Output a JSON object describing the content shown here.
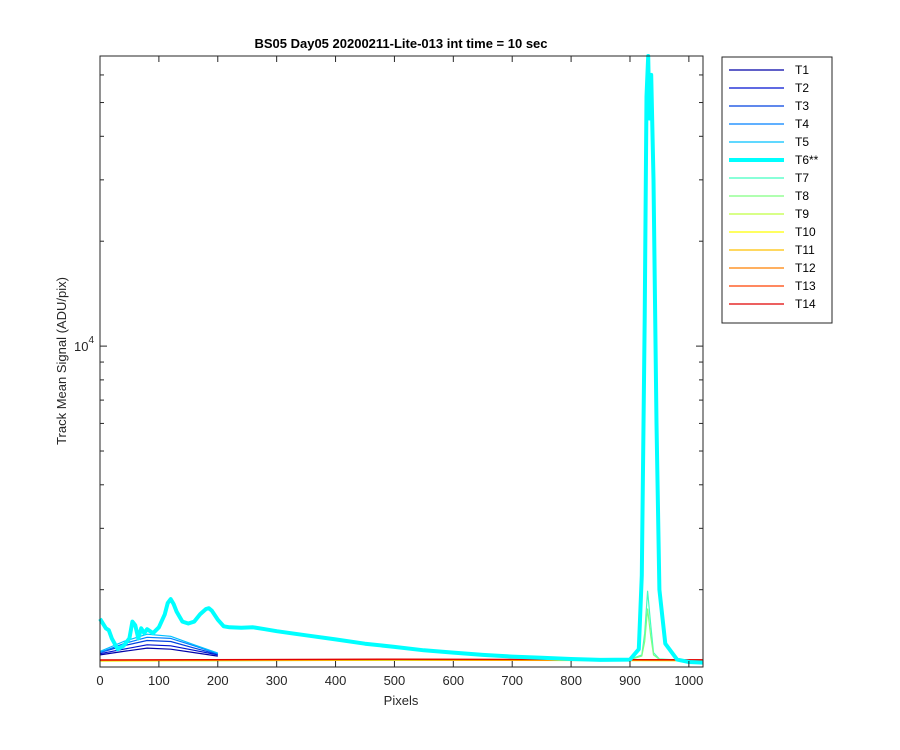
{
  "chart_data": {
    "type": "line",
    "title": "BS05 Day05 20200211-Lite-013 int time = 10 sec",
    "xlabel": "Pixels",
    "ylabel": "Track Mean Signal (ADU/pix)",
    "xlim": [
      0,
      1024
    ],
    "ylim": [
      1200,
      68000
    ],
    "yscale": "log",
    "xticks": [
      0,
      100,
      200,
      300,
      400,
      500,
      600,
      700,
      800,
      900,
      1000
    ],
    "yticks_labeled": [
      {
        "base": "10",
        "exp": "4",
        "value": 10000
      }
    ],
    "yticks_minor": [
      20000,
      30000,
      40000,
      50000,
      60000,
      2000,
      3000,
      4000,
      5000,
      6000,
      7000,
      8000,
      9000
    ],
    "grid": "on",
    "legend_placement": "outside-right",
    "series": [
      {
        "name": "T1",
        "color": "#0000a8",
        "width": 1.2,
        "x": [
          0,
          40,
          80,
          120,
          160,
          200
        ],
        "y": [
          1300,
          1330,
          1360,
          1350,
          1320,
          1290
        ]
      },
      {
        "name": "T2",
        "color": "#0010d0",
        "width": 1.2,
        "x": [
          0,
          40,
          80,
          120,
          160,
          200
        ],
        "y": [
          1310,
          1350,
          1390,
          1380,
          1340,
          1300
        ]
      },
      {
        "name": "T3",
        "color": "#0040e0",
        "width": 1.2,
        "x": [
          0,
          40,
          80,
          120,
          160,
          200
        ],
        "y": [
          1320,
          1380,
          1430,
          1420,
          1360,
          1305
        ]
      },
      {
        "name": "T4",
        "color": "#0080ff",
        "width": 1.2,
        "x": [
          0,
          40,
          80,
          120,
          160,
          200
        ],
        "y": [
          1320,
          1400,
          1460,
          1450,
          1380,
          1310
        ]
      },
      {
        "name": "T5",
        "color": "#00c0ff",
        "width": 1.2,
        "x": [
          0,
          40,
          80,
          120,
          160,
          200
        ],
        "y": [
          1330,
          1420,
          1490,
          1470,
          1390,
          1315
        ]
      },
      {
        "name": "T6**",
        "color": "#00ffff",
        "width": 4,
        "x": [
          0,
          10,
          15,
          20,
          30,
          40,
          50,
          55,
          60,
          65,
          70,
          75,
          80,
          85,
          90,
          100,
          110,
          115,
          120,
          125,
          130,
          140,
          150,
          160,
          170,
          180,
          185,
          190,
          200,
          210,
          220,
          240,
          260,
          280,
          300,
          350,
          400,
          450,
          500,
          550,
          600,
          650,
          700,
          750,
          800,
          850,
          900,
          915,
          920,
          925,
          928,
          931,
          933,
          936,
          940,
          945,
          950,
          960,
          980,
          1000,
          1024
        ],
        "y": [
          1650,
          1550,
          1530,
          1450,
          1350,
          1380,
          1450,
          1620,
          1580,
          1450,
          1550,
          1500,
          1540,
          1520,
          1500,
          1560,
          1700,
          1830,
          1880,
          1820,
          1730,
          1620,
          1600,
          1620,
          1700,
          1760,
          1770,
          1740,
          1640,
          1570,
          1560,
          1555,
          1560,
          1540,
          1520,
          1480,
          1440,
          1400,
          1370,
          1340,
          1320,
          1300,
          1285,
          1275,
          1265,
          1258,
          1260,
          1350,
          2200,
          12000,
          52000,
          68000,
          45000,
          60000,
          30000,
          6000,
          2000,
          1400,
          1260,
          1240,
          1235
        ]
      },
      {
        "name": "T7",
        "color": "#40ffc0",
        "width": 1.2,
        "x": [
          0,
          800,
          900,
          920,
          925,
          930,
          935,
          940,
          950,
          1024
        ],
        "y": [
          1250,
          1260,
          1262,
          1300,
          1500,
          1980,
          1600,
          1320,
          1265,
          1245
        ]
      },
      {
        "name": "T8",
        "color": "#80ff80",
        "width": 1.2,
        "x": [
          0,
          800,
          900,
          920,
          925,
          930,
          935,
          940,
          950,
          1024
        ],
        "y": [
          1250,
          1258,
          1260,
          1290,
          1420,
          1760,
          1480,
          1300,
          1262,
          1245
        ]
      },
      {
        "name": "T9",
        "color": "#c0ff40",
        "width": 1.2,
        "x": [
          0,
          500,
          1024
        ],
        "y": [
          1248,
          1255,
          1250
        ]
      },
      {
        "name": "T10",
        "color": "#ffff00",
        "width": 1.2,
        "x": [
          0,
          500,
          1024
        ],
        "y": [
          1250,
          1257,
          1252
        ]
      },
      {
        "name": "T11",
        "color": "#ffc000",
        "width": 1.2,
        "x": [
          0,
          500,
          1024
        ],
        "y": [
          1252,
          1258,
          1253
        ]
      },
      {
        "name": "T12",
        "color": "#ff8000",
        "width": 1.2,
        "x": [
          0,
          500,
          1024
        ],
        "y": [
          1254,
          1260,
          1255
        ]
      },
      {
        "name": "T13",
        "color": "#ff4000",
        "width": 1.2,
        "x": [
          0,
          500,
          1024
        ],
        "y": [
          1256,
          1262,
          1257
        ]
      },
      {
        "name": "T14",
        "color": "#e00000",
        "width": 1.2,
        "x": [
          0,
          500,
          1024
        ],
        "y": [
          1258,
          1264,
          1259
        ]
      }
    ]
  }
}
